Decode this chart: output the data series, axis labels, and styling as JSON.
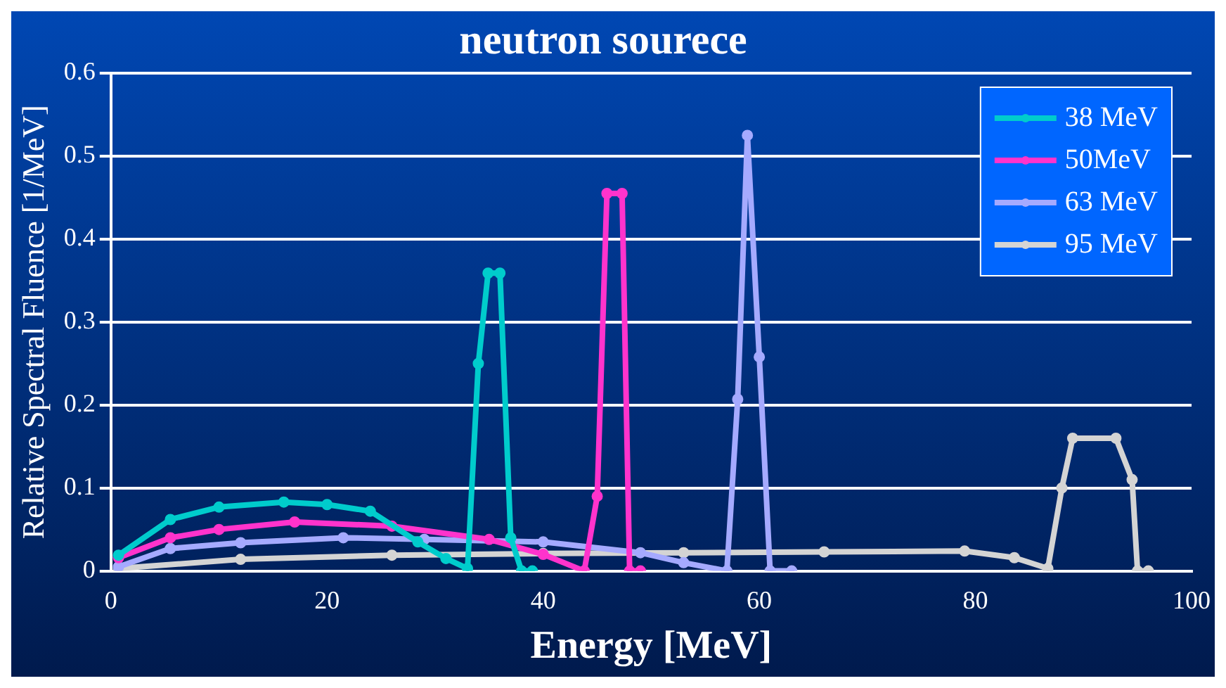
{
  "chart_data": {
    "type": "line",
    "title": "neutron sourece",
    "xlabel": "Energy [MeV]",
    "ylabel": "Relative Spectral Fluence [1/MeV]",
    "xlim": [
      0,
      100
    ],
    "xticks": [
      0,
      20,
      40,
      60,
      80,
      100
    ],
    "ylim": [
      0,
      0.6
    ],
    "yticks": [
      0,
      0.1,
      0.2,
      0.3,
      0.4,
      0.5,
      0.6
    ],
    "grid": "y",
    "legend": "top right",
    "marker": "circle",
    "line_style": "solid",
    "series": [
      {
        "name": "38 MeV",
        "color": "#00cccc",
        "x": [
          0.7,
          5.5,
          10,
          16,
          20,
          24,
          28.4,
          31,
          33,
          34,
          34.9,
          36,
          37,
          38,
          39
        ],
        "values": [
          0.019,
          0.062,
          0.077,
          0.083,
          0.08,
          0.072,
          0.035,
          0.015,
          0.003,
          0.25,
          0.359,
          0.359,
          0.04,
          0,
          0
        ]
      },
      {
        "name": "50MeV",
        "color": "#ff33cc",
        "x": [
          0.7,
          5.5,
          10,
          17,
          26,
          35,
          40,
          43.8,
          45,
          45.9,
          47.3,
          48,
          49
        ],
        "values": [
          0.016,
          0.04,
          0.05,
          0.059,
          0.054,
          0.038,
          0.02,
          0,
          0.09,
          0.455,
          0.455,
          0,
          0
        ]
      },
      {
        "name": "63 MeV",
        "color": "#a5aaff",
        "x": [
          0.7,
          5.5,
          12,
          21.5,
          29,
          40,
          49,
          53,
          57,
          58,
          58.9,
          60,
          61,
          63
        ],
        "values": [
          0.005,
          0.027,
          0.034,
          0.04,
          0.038,
          0.035,
          0.022,
          0.01,
          0,
          0.207,
          0.525,
          0.258,
          0,
          0
        ]
      },
      {
        "name": "95 MeV",
        "color": "#d4d4d4",
        "x": [
          0.7,
          12,
          26,
          40,
          53,
          66,
          79,
          83.6,
          86.7,
          88,
          89,
          93,
          94.5,
          95,
          96
        ],
        "values": [
          0.003,
          0.014,
          0.019,
          0.021,
          0.022,
          0.023,
          0.024,
          0.016,
          0.003,
          0.1,
          0.16,
          0.16,
          0.11,
          0,
          0
        ]
      }
    ]
  }
}
